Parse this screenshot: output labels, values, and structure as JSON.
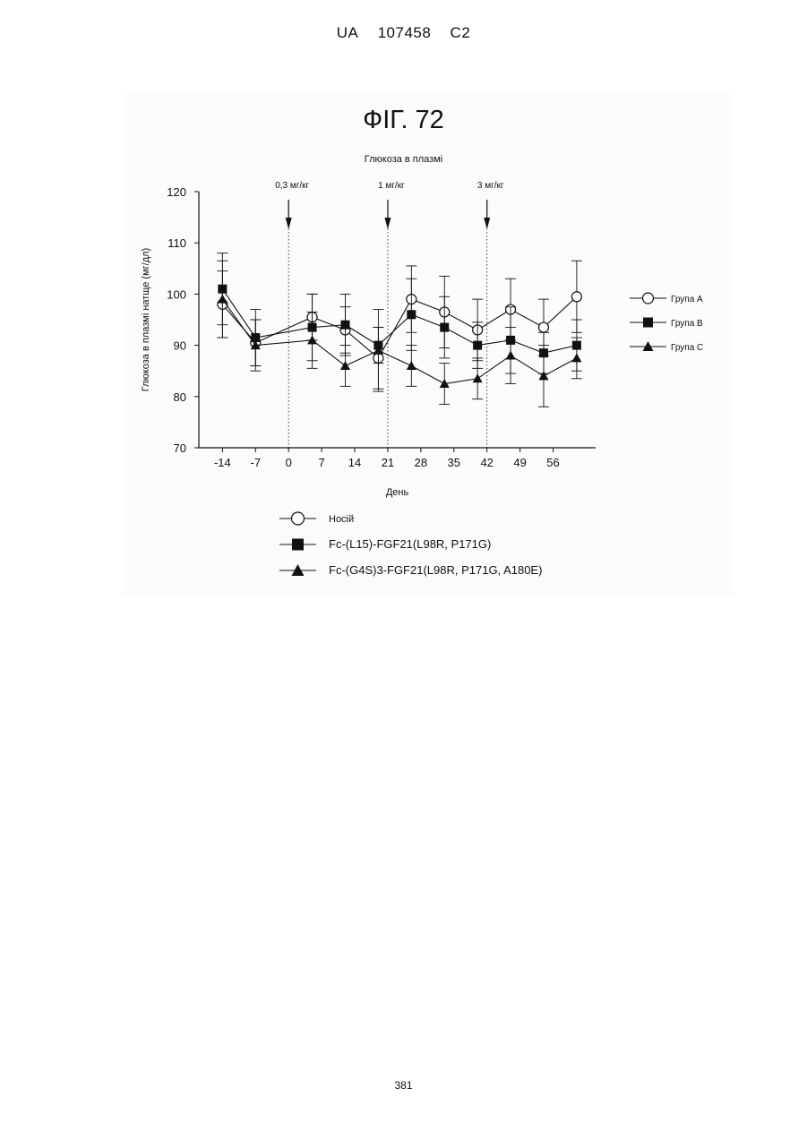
{
  "header": {
    "office": "UA",
    "number": "107458",
    "kind": "C2"
  },
  "figure_title": "ФІГ. 72",
  "page_number": "381",
  "colors": {
    "ink": "#111111"
  },
  "chart_data": {
    "type": "line",
    "title": "Глюкоза в плазмі",
    "xlabel": "День",
    "ylabel": "Глюкоза в плазмі натще (мг/дл)",
    "x": [
      -14,
      -7,
      0,
      7,
      14,
      21,
      28,
      35,
      42,
      49,
      56
    ],
    "x_tick_labels": [
      "-14",
      "-7",
      "0",
      "7",
      "14",
      "21",
      "28",
      "35",
      "42",
      "49",
      "56"
    ],
    "xlim": [
      -19,
      65
    ],
    "ylim": [
      70,
      120
    ],
    "y_ticks": [
      70,
      80,
      90,
      100,
      110,
      120
    ],
    "doses": [
      {
        "day": 0,
        "label": "0,3 мг/кг"
      },
      {
        "day": 21,
        "label": "1 мг/кг"
      },
      {
        "day": 42,
        "label": "3 мг/кг"
      }
    ],
    "series": [
      {
        "name": "Група A",
        "marker": "circle-open",
        "x": [
          -14,
          -7,
          5,
          12,
          19,
          26,
          33,
          40,
          47,
          54,
          61
        ],
        "values": [
          98,
          90.5,
          95.5,
          93,
          87.5,
          99,
          96.5,
          93,
          97,
          93.5,
          99.5
        ],
        "errors": [
          6.5,
          4.5,
          4.5,
          4.5,
          6,
          6.5,
          7,
          6,
          6,
          5.5,
          7
        ]
      },
      {
        "name": "Група B",
        "marker": "square-filled",
        "x": [
          -14,
          -7,
          5,
          12,
          19,
          26,
          33,
          40,
          47,
          54,
          61
        ],
        "values": [
          101,
          91.5,
          93.5,
          94,
          90,
          96,
          93.5,
          90,
          91,
          88.5,
          90
        ],
        "errors": [
          7,
          5.5,
          6.5,
          6,
          3.5,
          7,
          6,
          4.5,
          6.5,
          4,
          5
        ]
      },
      {
        "name": "Група C",
        "marker": "triangle-filled",
        "x": [
          -14,
          -7,
          5,
          12,
          19,
          26,
          33,
          40,
          47,
          54,
          61
        ],
        "values": [
          99,
          90,
          91,
          86,
          89,
          86,
          82.5,
          83.5,
          88,
          84,
          87.5
        ],
        "errors": [
          7.5,
          5,
          5.5,
          4,
          8,
          4,
          4,
          4,
          5.5,
          6,
          4
        ]
      }
    ],
    "legend_right": [
      "Група A",
      "Група B",
      "Група C"
    ],
    "legend_bottom": [
      "Носій",
      "Fc-(L15)-FGF21(L98R, P171G)",
      "Fc-(G4S)3-FGF21(L98R, P171G, A180E)"
    ]
  }
}
